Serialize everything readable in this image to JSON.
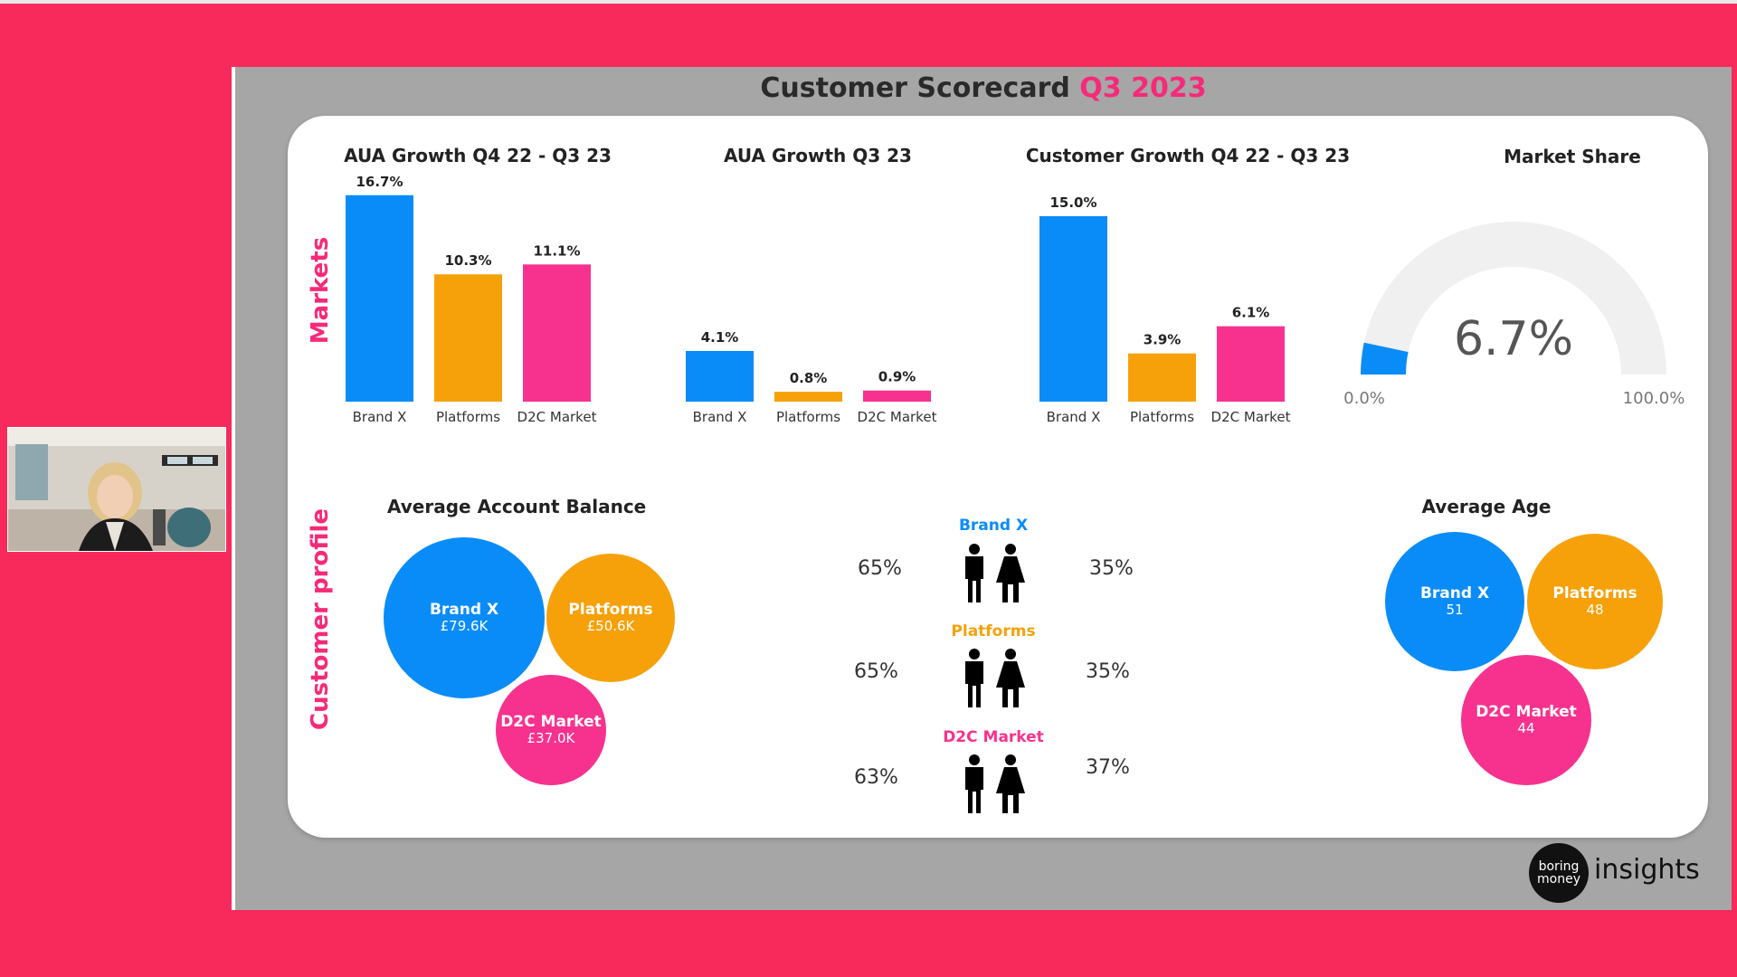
{
  "slide": {
    "title_main": "Customer Scorecard",
    "title_accent": "Q3 2023",
    "side_labels": {
      "markets": "Markets",
      "customer_profile": "Customer profile"
    }
  },
  "colors": {
    "brand_x": "#0A8CF8",
    "platforms": "#F6A10A",
    "d2c": "#F7328E",
    "background": "#F72A5B"
  },
  "chart_data": [
    {
      "type": "bar",
      "title": "AUA Growth Q4 22 - Q3 23",
      "categories": [
        "Brand X",
        "Platforms",
        "D2C Market"
      ],
      "values": [
        16.7,
        10.3,
        11.1
      ],
      "labels": [
        "16.7%",
        "10.3%",
        "11.1%"
      ]
    },
    {
      "type": "bar",
      "title": "AUA Growth Q3 23",
      "categories": [
        "Brand X",
        "Platforms",
        "D2C Market"
      ],
      "values": [
        4.1,
        0.8,
        0.9
      ],
      "labels": [
        "4.1%",
        "0.8%",
        "0.9%"
      ]
    },
    {
      "type": "bar",
      "title": "Customer Growth Q4 22 - Q3 23",
      "categories": [
        "Brand X",
        "Platforms",
        "D2C Market"
      ],
      "values": [
        15.0,
        3.9,
        6.1
      ],
      "labels": [
        "15.0%",
        "3.9%",
        "6.1%"
      ]
    },
    {
      "type": "gauge",
      "title": "Market Share",
      "value": 6.7,
      "value_label": "6.7%",
      "min_label": "0.0%",
      "max_label": "100.0%",
      "range": [
        0,
        100
      ]
    }
  ],
  "account_balance": {
    "title": "Average Account Balance",
    "bubbles": [
      {
        "name": "Brand X",
        "value": "£79.6K"
      },
      {
        "name": "Platforms",
        "value": "£50.6K"
      },
      {
        "name": "D2C Market",
        "value": "£37.0K"
      }
    ]
  },
  "gender": {
    "rows": [
      {
        "name": "Brand X",
        "male": "65%",
        "female": "35%"
      },
      {
        "name": "Platforms",
        "male": "65%",
        "female": "35%"
      },
      {
        "name": "D2C Market",
        "male": "63%",
        "female": "37%"
      }
    ]
  },
  "average_age": {
    "title": "Average Age",
    "bubbles": [
      {
        "name": "Brand X",
        "value": "51"
      },
      {
        "name": "Platforms",
        "value": "48"
      },
      {
        "name": "D2C Market",
        "value": "44"
      }
    ]
  },
  "logo": {
    "line1": "boring",
    "line2": "money",
    "text": "insights"
  }
}
